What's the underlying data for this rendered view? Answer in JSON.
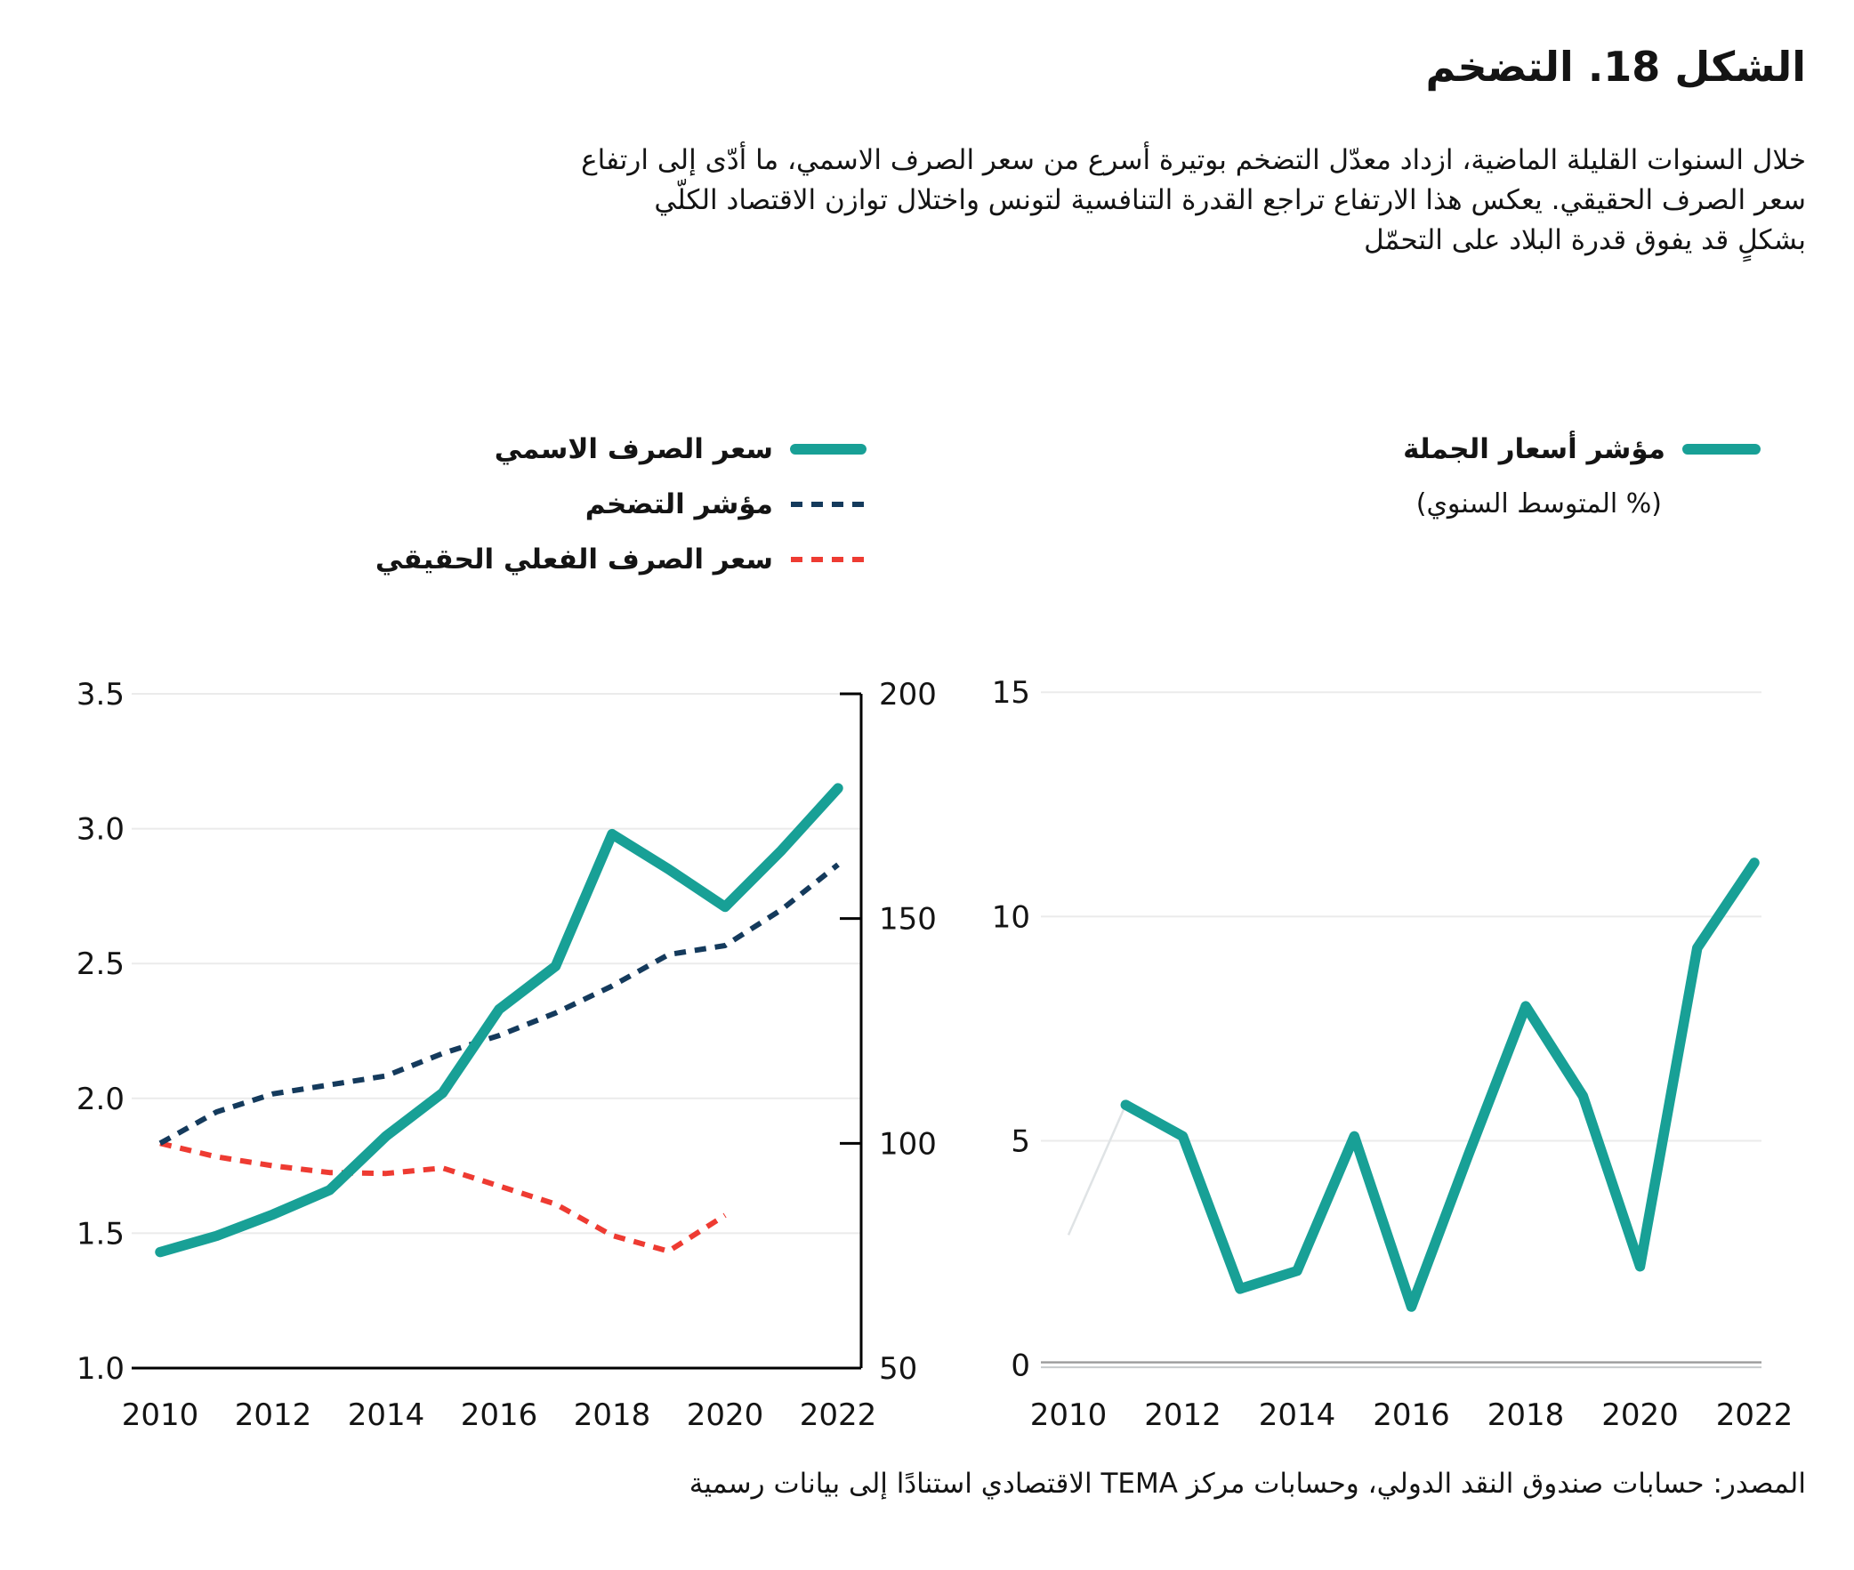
{
  "title": "الشكل 18. التضخم",
  "description_lines": [
    "خلال السنوات القليلة الماضية، ازداد معدّل التضخم بوتيرة أسرع من سعر الصرف الاسمي، ما أدّى إلى ارتفاع",
    "سعر الصرف الحقيقي. يعكس هذا الارتفاع تراجع القدرة التنافسية لتونس واختلال توازن الاقتصاد الكلّي",
    "بشكلٍ قد يفوق قدرة البلاد على التحمّل"
  ],
  "legend_left": {
    "items": [
      {
        "label": "سعر الصرف الاسمي",
        "style": "solid",
        "color": "#18a096"
      },
      {
        "label": "مؤشر التضخم",
        "style": "dashed",
        "color": "#143a5c"
      },
      {
        "label": "سعر الصرف الفعلي الحقيقي",
        "style": "dashed",
        "color": "#ee3b32"
      }
    ]
  },
  "legend_right": {
    "label": "مؤشر أسعار الجملة",
    "sublabel": "(% المتوسط السنوي)",
    "style": "solid",
    "color": "#18a096"
  },
  "source": "المصدر: حسابات صندوق النقد الدولي،  وحسابات مركز TEMA الاقتصادي استنادًا إلى بيانات رسمية",
  "colors": {
    "accent_teal": "#18a096",
    "navy": "#143a5c",
    "red": "#ee3b32",
    "grid": "#ebebeb",
    "axis": "#000000",
    "zero_axis": "#9b9b9b",
    "zero_axis_light": "#c6cacc",
    "faint_line": "#dfe3e5",
    "text": "#141414"
  },
  "chart_data": [
    {
      "type": "line",
      "title": "",
      "xlabel": "",
      "ylabel": "",
      "x_ticks": [
        2010,
        2012,
        2014,
        2016,
        2018,
        2020,
        2022
      ],
      "grid": true,
      "legend_position": "above",
      "left_axis": {
        "range": [
          1.0,
          3.5
        ],
        "ticks": [
          1.0,
          1.5,
          2.0,
          2.5,
          3.0,
          3.5
        ],
        "tick_labels": [
          "1.0",
          "1.5",
          "2.0",
          "2.5",
          "3.0",
          "3.5"
        ]
      },
      "right_axis": {
        "range": [
          50,
          200
        ],
        "ticks": [
          50,
          100,
          150,
          200
        ],
        "tick_labels": [
          "50",
          "100",
          "150",
          "200"
        ]
      },
      "series": [
        {
          "name": "سعر الصرف الاسمي",
          "axis": "left",
          "style": "solid",
          "color": "#18a096",
          "years": [
            2010,
            2011,
            2012,
            2013,
            2014,
            2015,
            2016,
            2017,
            2018,
            2019,
            2020,
            2021,
            2022
          ],
          "values": [
            1.43,
            1.49,
            1.57,
            1.66,
            1.86,
            2.02,
            2.33,
            2.49,
            2.98,
            2.85,
            2.71,
            2.92,
            3.15
          ]
        },
        {
          "name": "مؤشر التضخم",
          "axis": "right",
          "style": "dashed",
          "color": "#143a5c",
          "years": [
            2010,
            2011,
            2012,
            2013,
            2014,
            2015,
            2016,
            2017,
            2018,
            2019,
            2020,
            2021,
            2022
          ],
          "values": [
            100,
            107,
            111,
            113,
            115,
            120,
            124,
            129,
            135,
            142,
            144,
            152,
            162
          ]
        },
        {
          "name": "سعر الصرف الفعلي الحقيقي",
          "axis": "right",
          "style": "dashed",
          "color": "#ee3b32",
          "years": [
            2010,
            2011,
            2012,
            2013,
            2014,
            2015,
            2016,
            2017,
            2018,
            2019,
            2020
          ],
          "values": [
            100,
            97,
            95,
            93.5,
            93.3,
            94.5,
            90.5,
            86.5,
            79.5,
            76,
            84
          ]
        }
      ]
    },
    {
      "type": "line",
      "title": "مؤشر أسعار الجملة (% المتوسط السنوي)",
      "xlabel": "",
      "ylabel": "",
      "x_ticks": [
        2010,
        2012,
        2014,
        2016,
        2018,
        2020,
        2022
      ],
      "grid": true,
      "y_axis": {
        "range": [
          0,
          15
        ],
        "ticks": [
          0,
          5,
          10,
          15
        ],
        "tick_labels": [
          "0",
          "5",
          "10",
          "15"
        ]
      },
      "series": [
        {
          "name": "مؤشر أسعار الجملة",
          "style": "solid",
          "color": "#18a096",
          "years": [
            2011,
            2012,
            2013,
            2014,
            2015,
            2016,
            2017,
            2018,
            2019,
            2020,
            2021,
            2022
          ],
          "values": [
            5.8,
            5.1,
            1.7,
            2.1,
            5.1,
            1.3,
            4.7,
            8.0,
            6.0,
            2.2,
            9.3,
            11.2
          ]
        },
        {
          "name": "lead-in-segment-2010",
          "style": "faint",
          "color": "#dfe3e5",
          "years": [
            2010,
            2011
          ],
          "values": [
            2.9,
            5.8
          ]
        }
      ]
    }
  ]
}
